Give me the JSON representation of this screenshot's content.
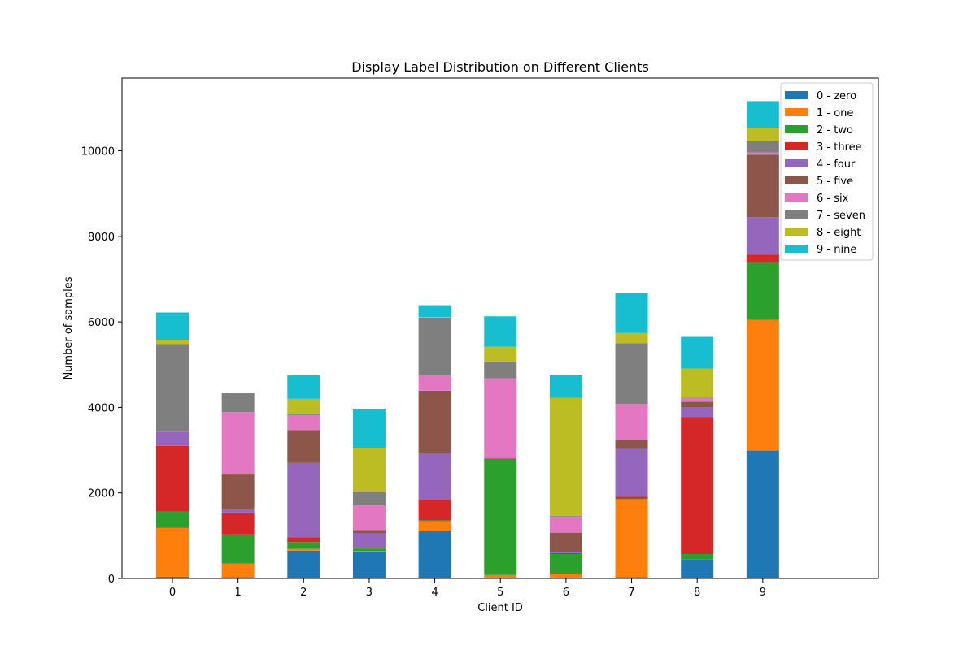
{
  "chart_data": {
    "type": "bar",
    "stacked": true,
    "title": "Display Label Distribution on Different Clients",
    "xlabel": "Client ID",
    "ylabel": "Number of samples",
    "categories": [
      "0",
      "1",
      "2",
      "3",
      "4",
      "5",
      "6",
      "7",
      "8",
      "9"
    ],
    "ylim": [
      0,
      11700
    ],
    "yticks": [
      0,
      2000,
      4000,
      6000,
      8000,
      10000
    ],
    "ytick_labels": [
      "0",
      "2000",
      "4000",
      "6000",
      "8000",
      "10000"
    ],
    "legend_position": "top-right",
    "series": [
      {
        "name": "0 - zero",
        "color": "#1f77b4",
        "values": [
          40,
          30,
          650,
          620,
          1120,
          20,
          20,
          30,
          440,
          2990
        ]
      },
      {
        "name": "1 - one",
        "color": "#ff7f0e",
        "values": [
          1140,
          320,
          40,
          20,
          220,
          60,
          90,
          1820,
          0,
          3060
        ]
      },
      {
        "name": "2 - two",
        "color": "#2ca02c",
        "values": [
          380,
          680,
          160,
          60,
          20,
          2700,
          460,
          20,
          130,
          1330
        ]
      },
      {
        "name": "3 - three",
        "color": "#d62728",
        "values": [
          1540,
          510,
          110,
          20,
          480,
          20,
          20,
          40,
          3200,
          190
        ]
      },
      {
        "name": "4 - four",
        "color": "#9467bd",
        "values": [
          320,
          80,
          1740,
          330,
          1090,
          10,
          20,
          1120,
          230,
          880
        ]
      },
      {
        "name": "5 - five",
        "color": "#8c564b",
        "values": [
          10,
          810,
          770,
          80,
          1460,
          0,
          460,
          210,
          130,
          1460
        ]
      },
      {
        "name": "6 - six",
        "color": "#e377c2",
        "values": [
          20,
          1460,
          350,
          580,
          360,
          1870,
          370,
          840,
          80,
          50
        ]
      },
      {
        "name": "7 - seven",
        "color": "#7f7f7f",
        "values": [
          2030,
          440,
          30,
          310,
          1350,
          380,
          20,
          1420,
          20,
          260
        ]
      },
      {
        "name": "8 - eight",
        "color": "#bcbd22",
        "values": [
          100,
          0,
          350,
          1030,
          10,
          360,
          2760,
          240,
          680,
          320
        ]
      },
      {
        "name": "9 - nine",
        "color": "#17becf",
        "values": [
          640,
          0,
          550,
          920,
          280,
          710,
          540,
          930,
          740,
          620
        ]
      }
    ]
  }
}
